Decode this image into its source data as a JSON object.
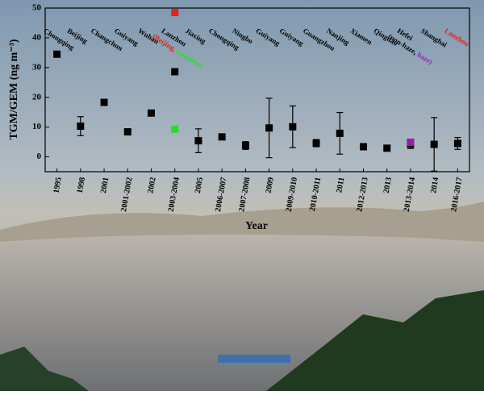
{
  "chart_data": {
    "type": "scatter",
    "y_label": "TGM/GEM (ng m⁻³)",
    "x_label": "Year",
    "categories": [
      "1995",
      "1998",
      "2001",
      "2001-2002",
      "2002",
      "2003-2004",
      "2005",
      "2006-2007",
      "2007-2008",
      "2009",
      "2009-2010",
      "2010-2011",
      "2011",
      "2012-2013",
      "2013",
      "2013-2014",
      "2014",
      "2016-2017"
    ],
    "city_labels": [
      [
        [
          {
            "text": "Chongqing",
            "color": "#000000"
          }
        ]
      ],
      [
        [
          {
            "text": "Beijing",
            "color": "#000000"
          }
        ]
      ],
      [
        [
          {
            "text": "Changchun",
            "color": "#000000"
          }
        ]
      ],
      [
        [
          {
            "text": "Guiyang",
            "color": "#000000"
          }
        ]
      ],
      [
        [
          {
            "text": "Wuhan",
            "color": "#000000"
          }
        ]
      ],
      [
        [
          {
            "text": "Lanzhou",
            "color": "#000000"
          }
        ],
        [
          {
            "text": "(Beijing,",
            "color": "#e8201c"
          },
          {
            "text": " Lanzhou)",
            "color": "#22e022"
          }
        ]
      ],
      [
        [
          {
            "text": "Jiaxing",
            "color": "#000000"
          }
        ]
      ],
      [
        [
          {
            "text": "Chongqing",
            "color": "#000000"
          }
        ]
      ],
      [
        [
          {
            "text": "Ningbo",
            "color": "#000000"
          }
        ]
      ],
      [
        [
          {
            "text": "Guiyang",
            "color": "#000000"
          }
        ]
      ],
      [
        [
          {
            "text": "Guiyang",
            "color": "#000000"
          }
        ]
      ],
      [
        [
          {
            "text": "Guangzhou",
            "color": "#000000"
          }
        ]
      ],
      [
        [
          {
            "text": "Nanjing",
            "color": "#000000"
          }
        ]
      ],
      [
        [
          {
            "text": "Xiamen",
            "color": "#000000"
          }
        ]
      ],
      [
        [
          {
            "text": "Qingdao",
            "color": "#000000"
          }
        ]
      ],
      [
        [
          {
            "text": "Hefei",
            "color": "#000000"
          }
        ],
        [
          {
            "text": "(non-haze,",
            "color": "#000000"
          },
          {
            "text": " haze)",
            "color": "#a020c0"
          }
        ]
      ],
      [
        [
          {
            "text": "Shanghai",
            "color": "#000000"
          }
        ]
      ],
      [
        [
          {
            "text": "Lanzhou",
            "color": "#e8201c"
          }
        ]
      ]
    ],
    "series": [
      {
        "color": "#000000",
        "values": [
          34.5,
          10.3,
          18.3,
          8.4,
          14.7,
          28.6,
          5.4,
          6.7,
          3.8,
          9.7,
          10.1,
          4.6,
          7.9,
          3.4,
          2.9,
          4.3,
          4.2,
          4.5
        ],
        "errors": [
          null,
          3.2,
          null,
          null,
          null,
          null,
          4,
          null,
          1.3,
          10,
          7,
          1.2,
          7,
          null,
          null,
          1.5,
          9,
          2
        ]
      },
      {
        "color": "#e8201c",
        "values": [
          null,
          null,
          null,
          null,
          null,
          48.5,
          null,
          null,
          null,
          null,
          null,
          null,
          null,
          null,
          null,
          null,
          null,
          null
        ]
      },
      {
        "color": "#22e022",
        "values": [
          null,
          null,
          null,
          null,
          null,
          9.3,
          null,
          null,
          null,
          null,
          null,
          null,
          null,
          null,
          null,
          null,
          null,
          null
        ]
      },
      {
        "color": "#9020a8",
        "values": [
          null,
          null,
          null,
          null,
          null,
          null,
          null,
          null,
          null,
          null,
          null,
          null,
          null,
          null,
          null,
          4.9,
          null,
          null
        ]
      }
    ],
    "ylim": [
      -5,
      50
    ],
    "yticks": [
      0,
      10,
      20,
      30,
      40,
      50
    ]
  }
}
